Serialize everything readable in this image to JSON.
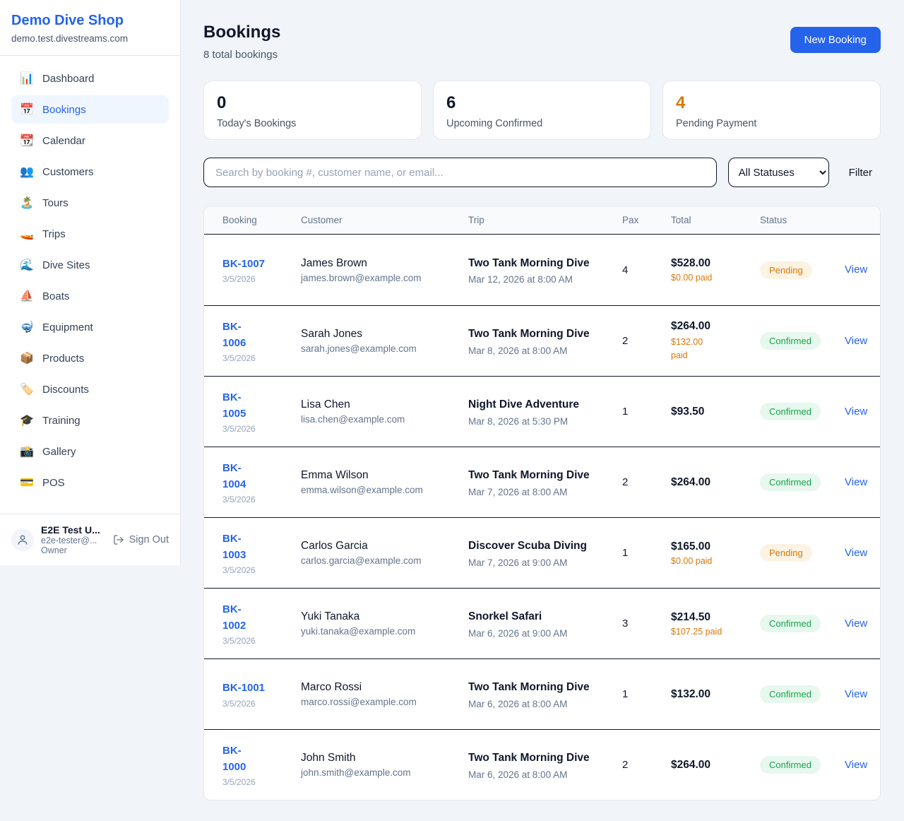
{
  "sidebar": {
    "brand": "Demo Dive Shop",
    "domain": "demo.test.divestreams.com",
    "items": [
      {
        "glyph": "📊",
        "icon": "bar-chart-icon",
        "label": "Dashboard",
        "active": false
      },
      {
        "glyph": "📅",
        "icon": "calendar-icon",
        "label": "Bookings",
        "active": true
      },
      {
        "glyph": "📆",
        "icon": "tear-off-calendar-icon",
        "label": "Calendar",
        "active": false
      },
      {
        "glyph": "👥",
        "icon": "people-icon",
        "label": "Customers",
        "active": false
      },
      {
        "glyph": "🏝️",
        "icon": "island-icon",
        "label": "Tours",
        "active": false
      },
      {
        "glyph": "🚤",
        "icon": "speedboat-icon",
        "label": "Trips",
        "active": false
      },
      {
        "glyph": "🌊",
        "icon": "wave-icon",
        "label": "Dive Sites",
        "active": false
      },
      {
        "glyph": "⛵",
        "icon": "sailboat-icon",
        "label": "Boats",
        "active": false
      },
      {
        "glyph": "🤿",
        "icon": "diving-mask-icon",
        "label": "Equipment",
        "active": false
      },
      {
        "glyph": "📦",
        "icon": "package-icon",
        "label": "Products",
        "active": false
      },
      {
        "glyph": "🏷️",
        "icon": "tag-icon",
        "label": "Discounts",
        "active": false
      },
      {
        "glyph": "🎓",
        "icon": "graduation-cap-icon",
        "label": "Training",
        "active": false
      },
      {
        "glyph": "📸",
        "icon": "camera-icon",
        "label": "Gallery",
        "active": false
      },
      {
        "glyph": "💳",
        "icon": "credit-card-icon",
        "label": "POS",
        "active": false
      }
    ],
    "user": {
      "name": "E2E Test U...",
      "email": "e2e-tester@...",
      "role": "Owner",
      "signout_label": "Sign Out"
    }
  },
  "header": {
    "title": "Bookings",
    "subtitle": "8 total bookings",
    "new_booking_label": "New Booking"
  },
  "stats": [
    {
      "value": "0",
      "label": "Today's Bookings",
      "color": "#0f172a"
    },
    {
      "value": "6",
      "label": "Upcoming Confirmed",
      "color": "#0f172a"
    },
    {
      "value": "4",
      "label": "Pending Payment",
      "color": "#d97706"
    }
  ],
  "filters": {
    "search_placeholder": "Search by booking #, customer name, or email...",
    "status_selected": "All Statuses",
    "filter_label": "Filter"
  },
  "table": {
    "columns": [
      "Booking",
      "Customer",
      "Trip",
      "Pax",
      "Total",
      "Status"
    ],
    "view_label": "View",
    "rows": [
      {
        "booking": "BK-1007",
        "booking_date": "3/5/2026",
        "booking_one_line": true,
        "customer": "James Brown",
        "email": "james.brown@example.com",
        "trip": "Two Tank Morning Dive",
        "trip_datetime": "Mar 12, 2026 at 8:00 AM",
        "pax": "4",
        "total": "$528.00",
        "paid": "$0.00 paid",
        "paid_two_line": false,
        "status": "Pending"
      },
      {
        "booking": "BK-1006",
        "booking_date": "3/5/2026",
        "booking_one_line": false,
        "customer": "Sarah Jones",
        "email": "sarah.jones@example.com",
        "trip": "Two Tank Morning Dive",
        "trip_datetime": "Mar 8, 2026 at 8:00 AM",
        "pax": "2",
        "total": "$264.00",
        "paid": "$132.00 paid",
        "paid_two_line": true,
        "status": "Confirmed"
      },
      {
        "booking": "BK-1005",
        "booking_date": "3/5/2026",
        "booking_one_line": false,
        "customer": "Lisa Chen",
        "email": "lisa.chen@example.com",
        "trip": "Night Dive Adventure",
        "trip_datetime": "Mar 8, 2026 at 5:30 PM",
        "pax": "1",
        "total": "$93.50",
        "paid": "",
        "paid_two_line": false,
        "status": "Confirmed"
      },
      {
        "booking": "BK-1004",
        "booking_date": "3/5/2026",
        "booking_one_line": false,
        "customer": "Emma Wilson",
        "email": "emma.wilson@example.com",
        "trip": "Two Tank Morning Dive",
        "trip_datetime": "Mar 7, 2026 at 8:00 AM",
        "pax": "2",
        "total": "$264.00",
        "paid": "",
        "paid_two_line": false,
        "status": "Confirmed"
      },
      {
        "booking": "BK-1003",
        "booking_date": "3/5/2026",
        "booking_one_line": false,
        "customer": "Carlos Garcia",
        "email": "carlos.garcia@example.com",
        "trip": "Discover Scuba Diving",
        "trip_datetime": "Mar 7, 2026 at 9:00 AM",
        "pax": "1",
        "total": "$165.00",
        "paid": "$0.00 paid",
        "paid_two_line": false,
        "status": "Pending"
      },
      {
        "booking": "BK-1002",
        "booking_date": "3/5/2026",
        "booking_one_line": false,
        "customer": "Yuki Tanaka",
        "email": "yuki.tanaka@example.com",
        "trip": "Snorkel Safari",
        "trip_datetime": "Mar 6, 2026 at 9:00 AM",
        "pax": "3",
        "total": "$214.50",
        "paid": "$107.25 paid",
        "paid_two_line": false,
        "status": "Confirmed"
      },
      {
        "booking": "BK-1001",
        "booking_date": "3/5/2026",
        "booking_one_line": true,
        "customer": "Marco Rossi",
        "email": "marco.rossi@example.com",
        "trip": "Two Tank Morning Dive",
        "trip_datetime": "Mar 6, 2026 at 8:00 AM",
        "pax": "1",
        "total": "$132.00",
        "paid": "",
        "paid_two_line": false,
        "status": "Confirmed"
      },
      {
        "booking": "BK-1000",
        "booking_date": "3/5/2026",
        "booking_one_line": false,
        "customer": "John Smith",
        "email": "john.smith@example.com",
        "trip": "Two Tank Morning Dive",
        "trip_datetime": "Mar 6, 2026 at 8:00 AM",
        "pax": "2",
        "total": "$264.00",
        "paid": "",
        "paid_two_line": false,
        "status": "Confirmed"
      }
    ]
  },
  "colors": {
    "accent": "#2563eb",
    "pending_text": "#d97706",
    "pending_bg": "#fdf3e3",
    "confirmed_text": "#16a34a",
    "confirmed_bg": "#e7f8ee",
    "page_bg": "#f1f5f9",
    "dark_border": "#0f172a"
  }
}
